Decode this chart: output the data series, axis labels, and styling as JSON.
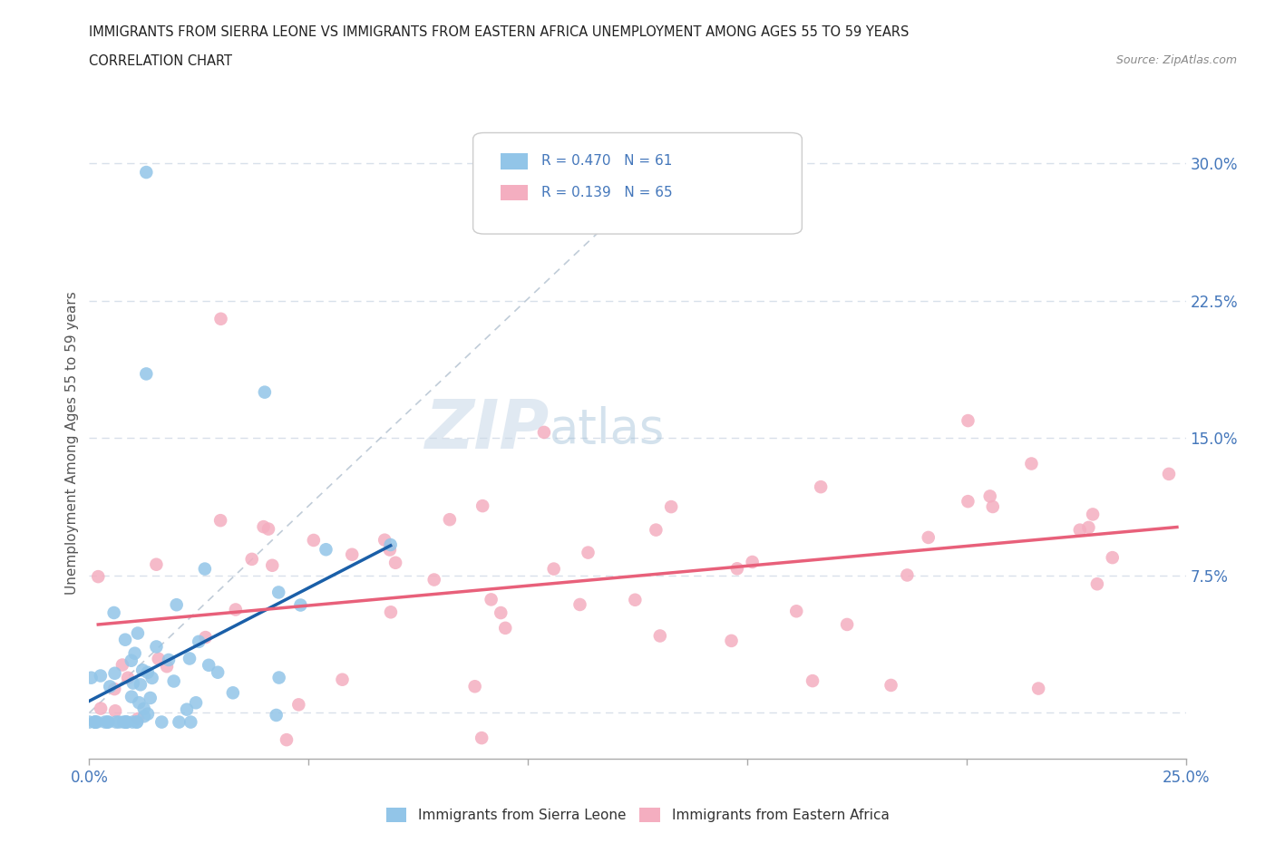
{
  "title_line1": "IMMIGRANTS FROM SIERRA LEONE VS IMMIGRANTS FROM EASTERN AFRICA UNEMPLOYMENT AMONG AGES 55 TO 59 YEARS",
  "title_line2": "CORRELATION CHART",
  "source_text": "Source: ZipAtlas.com",
  "ylabel": "Unemployment Among Ages 55 to 59 years",
  "xlim": [
    0.0,
    0.25
  ],
  "ylim": [
    -0.025,
    0.32
  ],
  "xtick_positions": [
    0.0,
    0.05,
    0.1,
    0.15,
    0.2,
    0.25
  ],
  "xtick_labels": [
    "0.0%",
    "",
    "",
    "",
    "",
    "25.0%"
  ],
  "ytick_positions": [
    0.0,
    0.075,
    0.15,
    0.225,
    0.3
  ],
  "ytick_labels": [
    "",
    "7.5%",
    "15.0%",
    "22.5%",
    "30.0%"
  ],
  "sierra_leone_color": "#92c5e8",
  "eastern_africa_color": "#f4aec0",
  "sierra_leone_line_color": "#1a5fa8",
  "eastern_africa_line_color": "#e8607a",
  "diagonal_line_color": "#c0ccd8",
  "r_sierra_leone": 0.47,
  "n_sierra_leone": 61,
  "r_eastern_africa": 0.139,
  "n_eastern_africa": 65,
  "legend_label_1": "Immigrants from Sierra Leone",
  "legend_label_2": "Immigrants from Eastern Africa",
  "watermark_zip": "ZIP",
  "watermark_atlas": "atlas",
  "background_color": "#ffffff",
  "grid_color": "#d8e0ea",
  "legend_r1": "R = 0.470",
  "legend_n1": "N = 61",
  "legend_r2": "R = 0.139",
  "legend_n2": "N = 65"
}
